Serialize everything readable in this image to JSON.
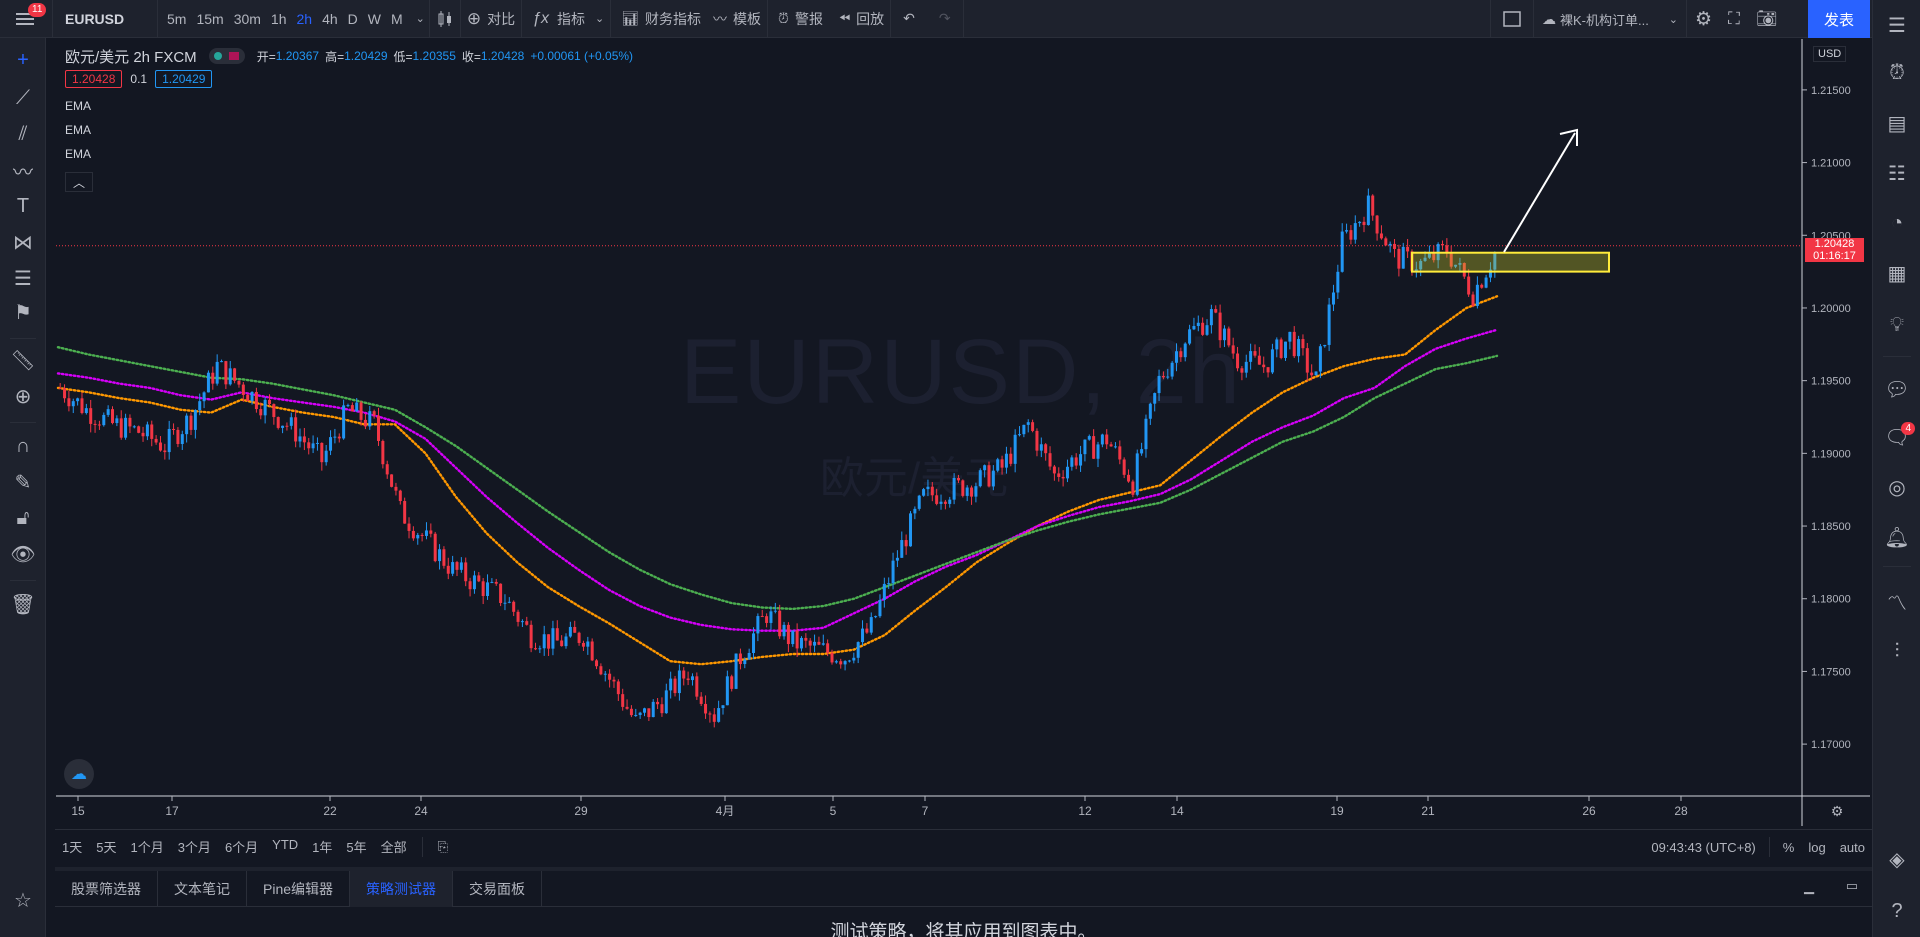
{
  "topbar": {
    "menu_badge": "11",
    "symbol": "EURUSD",
    "intervals": [
      "5m",
      "15m",
      "30m",
      "1h",
      "2h",
      "4h",
      "D",
      "W",
      "M"
    ],
    "active_interval": "2h",
    "compare": "对比",
    "indicators": "指标",
    "financials": "财务指标",
    "templates": "模板",
    "alert": "警报",
    "replay": "回放",
    "layout_name": "裸K-机构订单...",
    "publish": "发表"
  },
  "legend": {
    "title": "欧元/美元  2h  FXCM",
    "open_label": "开=",
    "open": "1.20367",
    "high_label": "高=",
    "high": "1.20429",
    "low_label": "低=",
    "low": "1.20355",
    "close_label": "收=",
    "close": "1.20428",
    "change": "+0.00061 (+0.05%)",
    "bid": "1.20428",
    "spread": "0.1",
    "ask": "1.20429",
    "indicators": [
      "EMA",
      "EMA",
      "EMA"
    ]
  },
  "watermark": {
    "symbol": "EURUSD, 2h",
    "name": "欧元/美元"
  },
  "price_axis": {
    "currency": "USD",
    "ticks": [
      "1.21500",
      "1.21000",
      "1.20500",
      "1.20000",
      "1.19500",
      "1.19000",
      "1.18500",
      "1.18000",
      "1.17500",
      "1.17000"
    ],
    "current_price": "1.20428",
    "countdown": "01:16:17"
  },
  "time_axis": {
    "ticks": [
      "15",
      "17",
      "22",
      "24",
      "29",
      "4月",
      "5",
      "7",
      "12",
      "14",
      "19",
      "21",
      "26",
      "28"
    ]
  },
  "rangebar": {
    "ranges": [
      "1天",
      "5天",
      "1个月",
      "3个月",
      "6个月",
      "YTD",
      "1年",
      "5年",
      "全部"
    ],
    "clock": "09:43:43 (UTC+8)",
    "pct": "%",
    "log": "log",
    "auto": "auto"
  },
  "bottom_panel": {
    "tabs": [
      "股票筛选器",
      "文本笔记",
      "Pine编辑器",
      "策略测试器",
      "交易面板"
    ],
    "active_tab": "策略测试器",
    "message": "测试策略，将其应用到图表中。"
  },
  "rightbar": {
    "chat_badge": "4"
  },
  "colors": {
    "background": "#131722",
    "up": "#2196f3",
    "down": "#f23645",
    "ema_fast": "#ff9800",
    "ema_mid": "#d500f9",
    "ema_slow": "#4caf50",
    "zone": "#ffeb3b"
  },
  "chart_data": {
    "type": "candlestick",
    "symbol": "EURUSD",
    "interval": "2h",
    "ylim": [
      1.1665,
      1.2185
    ],
    "series": [
      {
        "name": "EMA",
        "color": "#ff9800",
        "values": [
          1.1945,
          1.1942,
          1.1938,
          1.1935,
          1.193,
          1.1928,
          1.1937,
          1.1932,
          1.1928,
          1.1925,
          1.192,
          1.192,
          1.19,
          1.187,
          1.1845,
          1.1825,
          1.1808,
          1.1795,
          1.1783,
          1.177,
          1.1757,
          1.1755,
          1.1757,
          1.176,
          1.1762,
          1.1762,
          1.1765,
          1.1775,
          1.1792,
          1.1808,
          1.1825,
          1.1838,
          1.185,
          1.186,
          1.1868,
          1.1873,
          1.1878,
          1.1895,
          1.1912,
          1.1928,
          1.1942,
          1.1952,
          1.196,
          1.1965,
          1.1968,
          1.1985,
          1.2,
          1.2008
        ]
      },
      {
        "name": "EMA",
        "color": "#d500f9",
        "values": [
          1.1955,
          1.1952,
          1.1948,
          1.1945,
          1.194,
          1.1937,
          1.1942,
          1.1938,
          1.1935,
          1.1932,
          1.1928,
          1.1922,
          1.191,
          1.189,
          1.187,
          1.1852,
          1.1835,
          1.182,
          1.1806,
          1.1795,
          1.1787,
          1.1782,
          1.1779,
          1.1778,
          1.1778,
          1.178,
          1.179,
          1.18,
          1.1812,
          1.1822,
          1.183,
          1.184,
          1.185,
          1.1857,
          1.1863,
          1.1867,
          1.1872,
          1.1882,
          1.1895,
          1.1908,
          1.1918,
          1.1926,
          1.1938,
          1.1945,
          1.196,
          1.1972,
          1.1979,
          1.1985
        ]
      },
      {
        "name": "EMA",
        "color": "#4caf50",
        "values": [
          1.1973,
          1.1968,
          1.1964,
          1.196,
          1.1956,
          1.1952,
          1.1951,
          1.1948,
          1.1944,
          1.194,
          1.1935,
          1.193,
          1.1918,
          1.1905,
          1.189,
          1.1875,
          1.186,
          1.1846,
          1.1832,
          1.182,
          1.181,
          1.1803,
          1.1797,
          1.1794,
          1.1793,
          1.1795,
          1.18,
          1.1808,
          1.1816,
          1.1824,
          1.1832,
          1.184,
          1.1847,
          1.1853,
          1.1858,
          1.1862,
          1.1866,
          1.1875,
          1.1886,
          1.1897,
          1.1908,
          1.1915,
          1.1925,
          1.1938,
          1.1948,
          1.1958,
          1.1962,
          1.1967
        ]
      }
    ],
    "close_path": [
      1.1945,
      1.193,
      1.192,
      1.1915,
      1.1905,
      1.1925,
      1.196,
      1.1945,
      1.193,
      1.1915,
      1.1895,
      1.193,
      1.192,
      1.186,
      1.184,
      1.182,
      1.181,
      1.18,
      1.1775,
      1.177,
      1.1775,
      1.1745,
      1.1715,
      1.173,
      1.175,
      1.172,
      1.176,
      1.179,
      1.177,
      1.1765,
      1.176,
      1.178,
      1.183,
      1.187,
      1.1875,
      1.188,
      1.189,
      1.192,
      1.1885,
      1.19,
      1.191,
      1.188,
      1.195,
      1.198,
      1.1995,
      1.1965,
      1.196,
      1.198,
      1.195,
      1.2045,
      1.207,
      1.2035,
      1.203,
      1.204,
      1.201,
      1.2043
    ],
    "current_price": 1.20428,
    "zone": {
      "from": 1.2025,
      "to": 1.2038
    }
  }
}
